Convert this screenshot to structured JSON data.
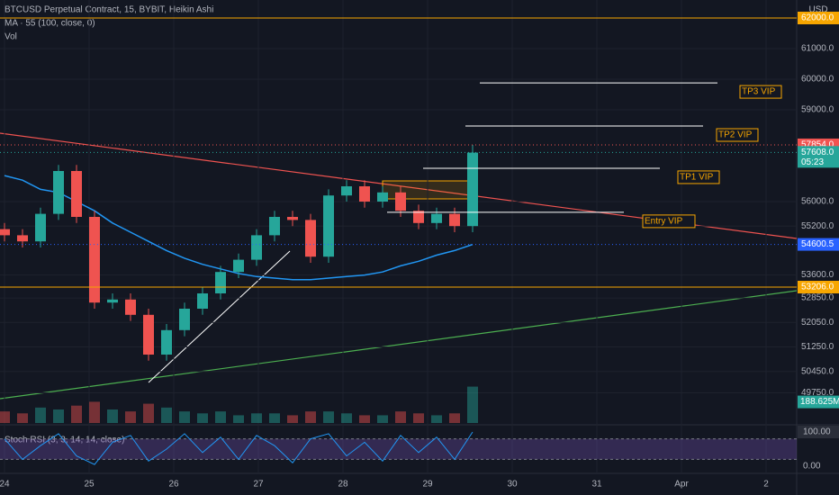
{
  "header": {
    "symbol": "BTCUSD Perpetual Contract, 15, BYBIT, Heikin Ashi",
    "ma": "MA · 55 (100, close, 0)",
    "vol": "Vol",
    "currency": "USD"
  },
  "chart_data": {
    "type": "candlestick",
    "open": [
      55100,
      54900,
      54700,
      55600,
      57000,
      55500,
      52700,
      52800,
      52300,
      51000,
      51800,
      52500,
      53000,
      53700,
      54100,
      54900,
      55500,
      55400,
      54200,
      56200,
      56500,
      56000,
      56300,
      55700,
      55300,
      55600,
      55200
    ],
    "high": [
      55300,
      55100,
      55800,
      57200,
      57200,
      55700,
      53000,
      53000,
      52500,
      52000,
      52700,
      53200,
      53900,
      54300,
      55100,
      55700,
      55700,
      55600,
      56400,
      56700,
      56700,
      56500,
      56500,
      55900,
      55800,
      55800,
      57854
    ],
    "low": [
      54700,
      54500,
      54500,
      55400,
      55300,
      52500,
      52500,
      52100,
      50800,
      50800,
      51600,
      52300,
      52800,
      53500,
      53900,
      54700,
      55200,
      54000,
      54000,
      56000,
      55800,
      55800,
      55500,
      55100,
      55100,
      55000,
      55000
    ],
    "close": [
      54900,
      54700,
      55600,
      57000,
      55500,
      52700,
      52800,
      52300,
      51000,
      51800,
      52500,
      53000,
      53700,
      54100,
      54900,
      55500,
      55400,
      54200,
      56200,
      56500,
      56000,
      56300,
      55700,
      55300,
      55600,
      55200,
      57600
    ],
    "ma": [
      56850,
      56700,
      56400,
      56300,
      56000,
      55700,
      55300,
      55000,
      54700,
      54400,
      54150,
      53950,
      53800,
      53650,
      53550,
      53500,
      53450,
      53450,
      53500,
      53550,
      53600,
      53700,
      53900,
      54050,
      54250,
      54400,
      54600
    ],
    "ylim": [
      48765,
      62588
    ],
    "yticks": [
      {
        "value": 61000,
        "label": "61000.0"
      },
      {
        "value": 60000,
        "label": "60000.0"
      },
      {
        "value": 59000,
        "label": "59000.0"
      },
      {
        "value": 56000,
        "label": "56000.0"
      },
      {
        "value": 55200,
        "label": "55200.0"
      },
      {
        "value": 53600,
        "label": "53600.0"
      },
      {
        "value": 52850,
        "label": "52850.0"
      },
      {
        "value": 52050,
        "label": "52050.0"
      },
      {
        "value": 51250,
        "label": "51250.0"
      },
      {
        "value": 50450,
        "label": "50450.0"
      },
      {
        "value": 49750,
        "label": "49750.0"
      }
    ],
    "x_labels": [
      "24",
      "25",
      "26",
      "27",
      "28",
      "29",
      "30",
      "31",
      "Apr",
      "2"
    ],
    "badges": [
      {
        "value": 62000,
        "label": "62000.0",
        "color": "#f7a600"
      },
      {
        "value": 57854,
        "label": "57854.0",
        "color": "#f05350"
      },
      {
        "value": 57608,
        "label": "57608.0",
        "color": "#26a69a",
        "countdown": "05:23"
      },
      {
        "value": 54600.5,
        "label": "54600.5",
        "color": "#2962ff"
      },
      {
        "value": 53206,
        "label": "53206.0",
        "color": "#f7a600"
      }
    ],
    "levels": [
      {
        "label": "TP3 VIP",
        "value": 59880
      },
      {
        "label": "TP2 VIP",
        "value": 58470
      },
      {
        "label": "TP1 VIP",
        "value": 57090
      },
      {
        "label": "Entry VIP",
        "value": 55650
      }
    ],
    "volume": [
      60,
      50,
      80,
      70,
      90,
      110,
      70,
      60,
      100,
      80,
      60,
      50,
      60,
      40,
      50,
      50,
      40,
      60,
      60,
      50,
      40,
      40,
      60,
      50,
      40,
      50,
      188.625
    ],
    "vlim": [
      0,
      210
    ],
    "volume_badge": {
      "value": 188.625,
      "label": "188.625M"
    },
    "stoch": {
      "title": "Stoch RSI (3, 3, 14, 14, close)",
      "k": [
        80,
        20,
        60,
        95,
        30,
        5,
        70,
        90,
        15,
        50,
        95,
        40,
        85,
        20,
        90,
        60,
        10,
        80,
        95,
        30,
        70,
        15,
        90,
        40,
        85,
        20,
        100
      ],
      "ylim": [
        0,
        100
      ],
      "yticks": [
        {
          "value": 100,
          "label": "100.00"
        },
        {
          "value": 0,
          "label": "0.00"
        }
      ],
      "bands": [
        20,
        80
      ]
    }
  }
}
